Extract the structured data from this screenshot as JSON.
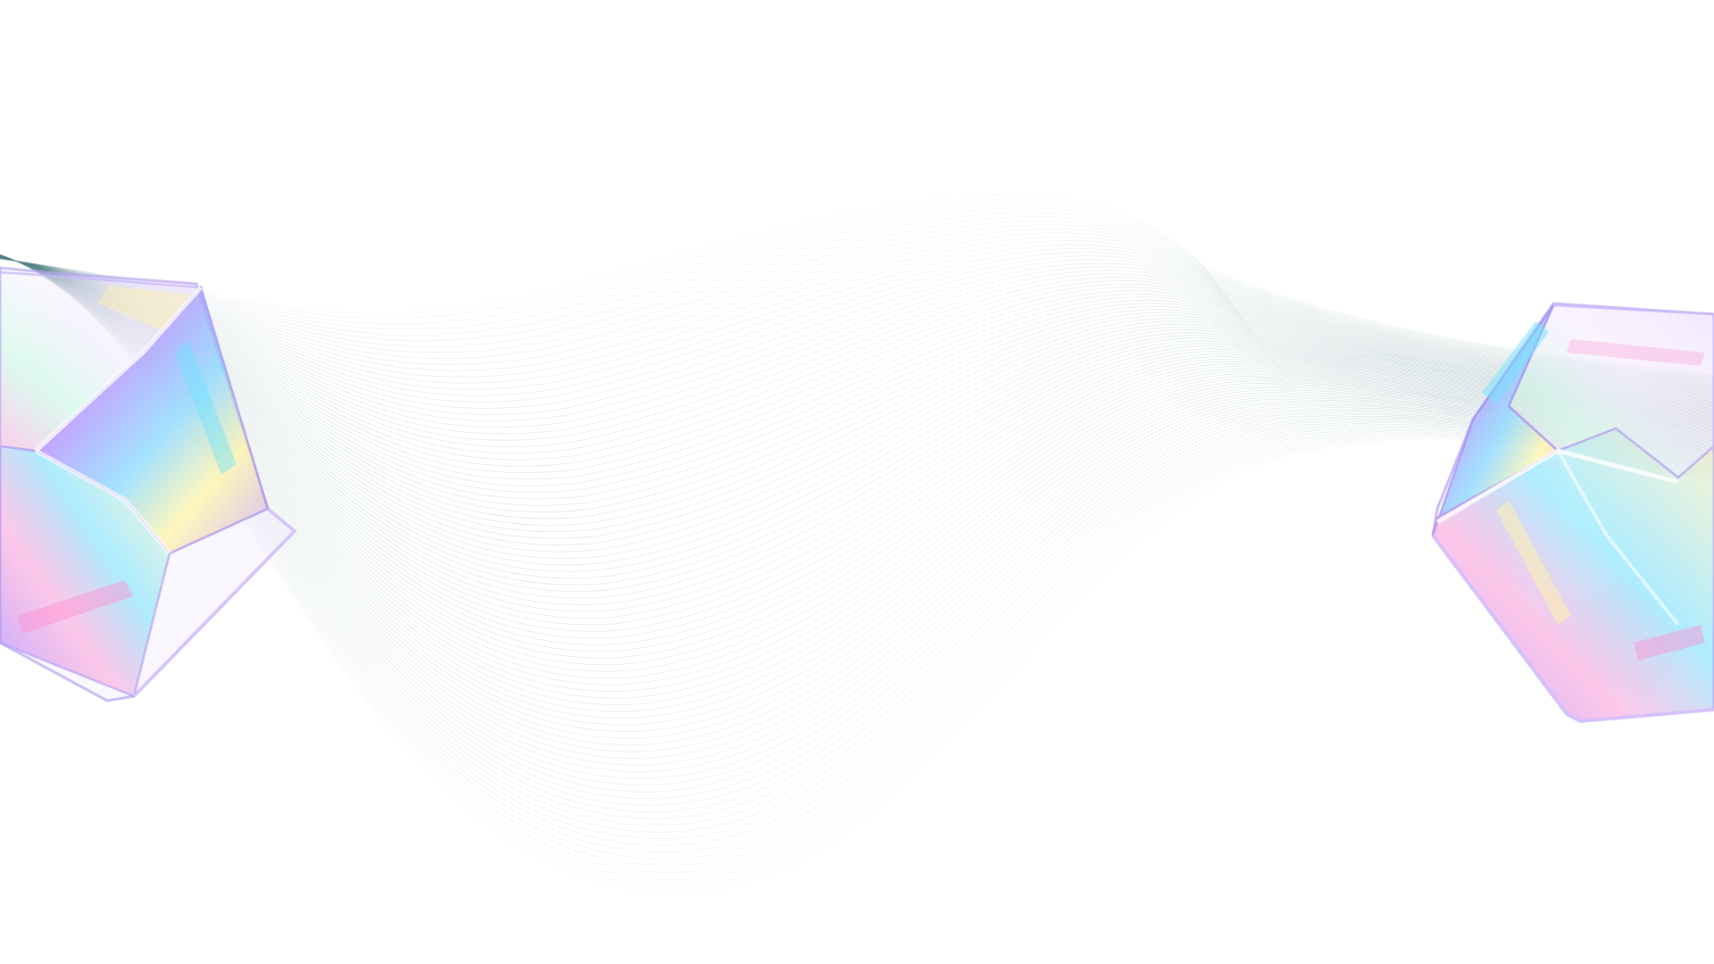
{
  "scene": {
    "background_color": "#ffffff",
    "ribbon_color": "#4f7f83",
    "ribbon_highlight": "#8fb3b6",
    "cube_tint": "#c9a8ff",
    "cube_edge_color": "#b7a2f2",
    "iridescent_colors": [
      "#ff9ad5",
      "#b88cff",
      "#7fd6ff",
      "#fff6a0",
      "#a7ffcf"
    ]
  }
}
